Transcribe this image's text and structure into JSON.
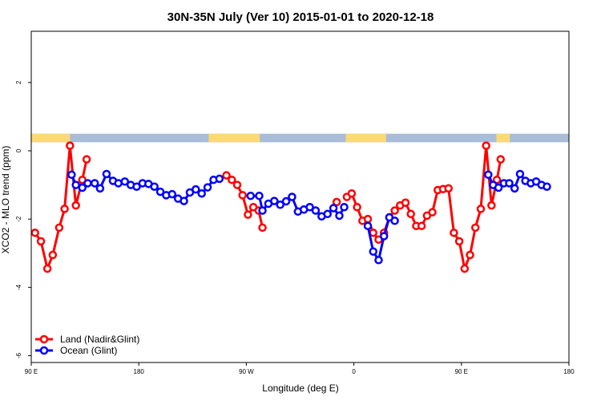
{
  "chart_data": {
    "type": "line",
    "title": "30N-35N July (Ver 10)   2015-01-01 to 2020-12-18",
    "xlabel": "Longitude (deg E)",
    "ylabel": "XCO2 - MLO trend (ppm)",
    "xlim": [
      0,
      100
    ],
    "ylim": [
      -6.2,
      3.5
    ],
    "x_ticks": [
      {
        "pos": 0,
        "label": "90 E"
      },
      {
        "pos": 20,
        "label": "180"
      },
      {
        "pos": 40,
        "label": "90 W"
      },
      {
        "pos": 60,
        "label": "0"
      },
      {
        "pos": 80,
        "label": "90 E"
      },
      {
        "pos": 100,
        "label": "180"
      }
    ],
    "y_ticks": [
      -6,
      -4,
      -2,
      0,
      2
    ],
    "grid": false,
    "legend_position": "bottom-left",
    "land_ocean_strip": {
      "ocean_color": "#a9bcd8",
      "land_color": "#fcd977",
      "y_range": [
        0.25,
        0.5
      ],
      "land_segments": [
        [
          0,
          7.2
        ],
        [
          33,
          42.5
        ],
        [
          58.5,
          66
        ],
        [
          86.5,
          89
        ]
      ]
    },
    "series": [
      {
        "name": "Land (Nadir&Glint)",
        "color": "#ff0000",
        "segments": [
          [
            [
              0.7,
              -2.4
            ],
            [
              1.8,
              -2.65
            ],
            [
              3.0,
              -3.45
            ],
            [
              4.0,
              -3.05
            ],
            [
              5.2,
              -2.25
            ],
            [
              6.2,
              -1.7
            ],
            [
              7.2,
              0.15
            ],
            [
              8.3,
              -1.6
            ],
            [
              9.5,
              -0.85
            ],
            [
              10.3,
              -0.25
            ]
          ],
          [
            [
              36.3,
              -0.72
            ],
            [
              37.3,
              -0.85
            ],
            [
              38.3,
              -1.0
            ],
            [
              39.3,
              -1.3
            ],
            [
              40.3,
              -1.87
            ],
            [
              41.3,
              -1.65
            ],
            [
              42.3,
              -1.75
            ],
            [
              43.0,
              -2.25
            ]
          ],
          [
            [
              56.8,
              -1.5
            ]
          ],
          [
            [
              58.7,
              -1.35
            ],
            [
              59.6,
              -1.25
            ],
            [
              60.6,
              -1.65
            ],
            [
              61.6,
              -2.05
            ],
            [
              62.6,
              -2.0
            ],
            [
              63.6,
              -2.4
            ],
            [
              64.6,
              -2.6
            ],
            [
              65.6,
              -2.4
            ],
            [
              66.6,
              -1.95
            ],
            [
              67.6,
              -1.75
            ],
            [
              68.6,
              -1.6
            ],
            [
              69.6,
              -1.52
            ],
            [
              70.6,
              -1.85
            ],
            [
              71.6,
              -2.2
            ],
            [
              72.6,
              -2.2
            ],
            [
              73.6,
              -1.9
            ],
            [
              74.6,
              -1.8
            ],
            [
              75.6,
              -1.15
            ],
            [
              76.6,
              -1.12
            ],
            [
              77.6,
              -1.1
            ],
            [
              78.6,
              -2.4
            ],
            [
              79.6,
              -2.65
            ],
            [
              80.6,
              -3.45
            ],
            [
              81.6,
              -3.05
            ],
            [
              82.6,
              -2.25
            ],
            [
              83.6,
              -1.7
            ],
            [
              84.6,
              0.15
            ],
            [
              85.6,
              -1.6
            ],
            [
              86.6,
              -0.85
            ],
            [
              87.3,
              -0.25
            ]
          ]
        ]
      },
      {
        "name": "Ocean (Glint)",
        "color": "#0000ff",
        "segments": [
          [
            [
              7.5,
              -0.7
            ],
            [
              8.3,
              -1.0
            ],
            [
              9.5,
              -1.08
            ],
            [
              10.5,
              -0.95
            ],
            [
              11.8,
              -0.95
            ],
            [
              12.8,
              -1.1
            ],
            [
              14.0,
              -0.68
            ],
            [
              15.2,
              -0.88
            ],
            [
              16.2,
              -0.95
            ],
            [
              17.4,
              -0.9
            ],
            [
              18.5,
              -1.0
            ],
            [
              19.6,
              -1.05
            ],
            [
              20.7,
              -0.95
            ],
            [
              21.8,
              -0.97
            ],
            [
              22.9,
              -1.05
            ],
            [
              24.0,
              -1.2
            ],
            [
              25.1,
              -1.3
            ],
            [
              26.2,
              -1.27
            ],
            [
              27.3,
              -1.4
            ],
            [
              28.4,
              -1.47
            ],
            [
              29.5,
              -1.22
            ],
            [
              30.6,
              -1.13
            ],
            [
              31.7,
              -1.25
            ],
            [
              32.8,
              -1.07
            ],
            [
              33.9,
              -0.85
            ],
            [
              35.0,
              -0.82
            ]
          ],
          [
            [
              40.8,
              -1.32
            ],
            [
              42.4,
              -1.32
            ],
            [
              43.0,
              -1.75
            ],
            [
              44.1,
              -1.55
            ],
            [
              45.2,
              -1.47
            ],
            [
              46.3,
              -1.58
            ],
            [
              47.4,
              -1.48
            ],
            [
              48.5,
              -1.35
            ],
            [
              49.6,
              -1.78
            ],
            [
              50.7,
              -1.72
            ],
            [
              51.8,
              -1.65
            ],
            [
              52.9,
              -1.75
            ],
            [
              54.0,
              -1.92
            ],
            [
              55.1,
              -1.85
            ],
            [
              56.2,
              -1.68
            ],
            [
              57.3,
              -1.9
            ],
            [
              58.2,
              -1.65
            ]
          ],
          [
            [
              62.6,
              -2.2
            ],
            [
              63.6,
              -2.95
            ],
            [
              64.6,
              -3.2
            ],
            [
              65.6,
              -2.5
            ],
            [
              66.6,
              -1.95
            ],
            [
              67.6,
              -2.05
            ]
          ],
          [
            [
              85.0,
              -0.7
            ],
            [
              85.9,
              -1.0
            ],
            [
              86.9,
              -1.08
            ],
            [
              87.9,
              -0.95
            ],
            [
              88.9,
              -0.95
            ],
            [
              89.9,
              -1.1
            ],
            [
              90.9,
              -0.68
            ],
            [
              91.9,
              -0.88
            ],
            [
              92.9,
              -0.95
            ],
            [
              93.9,
              -0.9
            ],
            [
              94.9,
              -1.0
            ],
            [
              95.9,
              -1.05
            ]
          ]
        ]
      }
    ]
  }
}
